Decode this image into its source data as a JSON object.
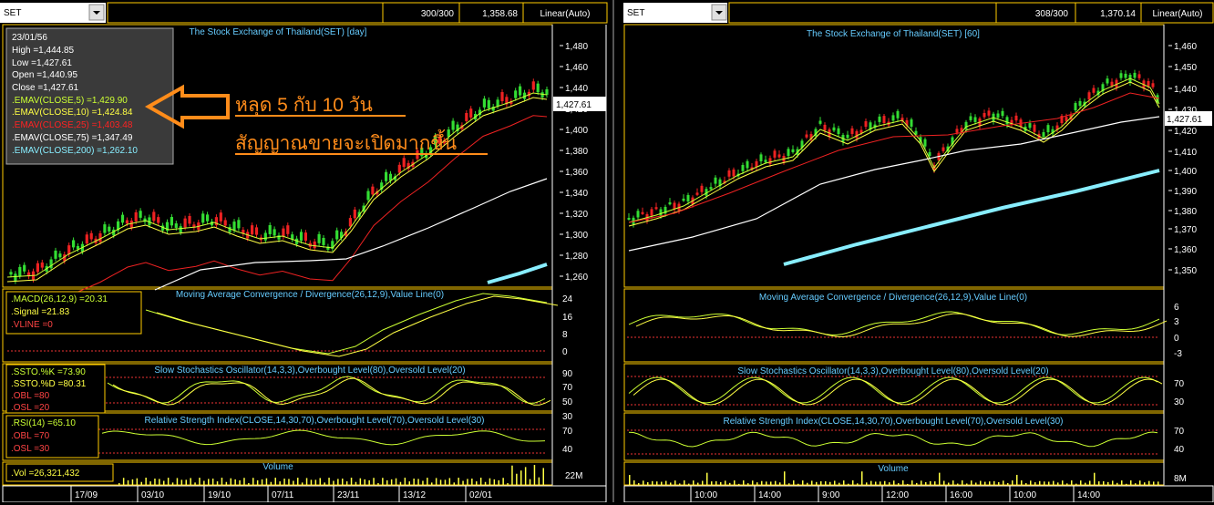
{
  "left": {
    "symbol": "SET",
    "count": "300/300",
    "last_price": "1,358.68",
    "scale_mode": "Linear(Auto)",
    "title": "The Stock Exchange of Thailand(SET) [day]",
    "price_axis": [
      "1,480",
      "1,460",
      "1,440",
      "1,420",
      "1,400",
      "1,380",
      "1,360",
      "1,340",
      "1,320",
      "1,300",
      "1,280",
      "1,260"
    ],
    "current_price_tag": "1,427.61",
    "info": {
      "date": "23/01/56",
      "high": "High  =1,444.85",
      "low": "Low   =1,427.61",
      "open": "Open  =1,440.95",
      "close": "Close  =1,427.61",
      "ema5": ".EMAV(CLOSE,5)    =1,429.90",
      "ema10": ".EMAV(CLOSE,10)    =1,424.84",
      "ema25": ".EMAV(CLOSE,25)    =1,403.48",
      "ema75": ".EMAV(CLOSE,75)    =1,347.49",
      "ema200": ".EMAV(CLOSE,200)    =1,262.10"
    },
    "annotation_line1": "หลุด 5 กับ 10  วัน",
    "annotation_line2": "สัญญาณขายจะเปิดมากขึ้น",
    "macd": {
      "title": "Moving Average Convergence / Divergence(26,12,9),Value Line(0)",
      "l1": ".MACD(26,12,9)   =20.31",
      "l2": ".Signal   =21.83",
      "l3": ".VLINE   =0",
      "axis": [
        "24",
        "16",
        "8",
        "0"
      ]
    },
    "stoch": {
      "title": "Slow Stochastics Oscillator(14,3,3),Overbought Level(80),Oversold Level(20)",
      "l1": ".SSTO.%K   =73.90",
      "l2": ".SSTO.%D   =80.31",
      "l3": ".OBL   =80",
      "l4": ".OSL   =20",
      "axis": [
        "90",
        "70",
        "50",
        "30"
      ]
    },
    "rsi": {
      "title": "Relative Strength Index(CLOSE,14,30,70),Overbought Level(70),Oversold Level(30)",
      "l1": ".RSI(14)   =65.10",
      "l2": ".OBL   =70",
      "l3": ".OSL   =30",
      "axis": [
        "70",
        "40"
      ]
    },
    "volume": {
      "title": "Volume",
      "l1": ".Vol   =26,321,432",
      "axis": [
        "22M"
      ]
    },
    "dates": [
      "17/09",
      "03/10",
      "19/10",
      "07/11",
      "23/11",
      "13/12",
      "02/01"
    ]
  },
  "right": {
    "symbol": "SET",
    "count": "308/300",
    "last_price": "1,370.14",
    "scale_mode": "Linear(Auto)",
    "title": "The Stock Exchange of Thailand(SET) [60]",
    "price_axis": [
      "1,460",
      "1,450",
      "1,440",
      "1,430",
      "1,420",
      "1,410",
      "1,400",
      "1,390",
      "1,380",
      "1,370",
      "1,360",
      "1,350"
    ],
    "current_price_tag": "1,427.61",
    "macd": {
      "title": "Moving Average Convergence / Divergence(26,12,9),Value Line(0)",
      "axis": [
        "6",
        "3",
        "0",
        "-3"
      ]
    },
    "stoch": {
      "title": "Slow Stochastics Oscillator(14,3,3),Overbought Level(80),Oversold Level(20)",
      "axis": [
        "70",
        "30"
      ]
    },
    "rsi": {
      "title": "Relative Strength Index(CLOSE,14,30,70),Overbought Level(70),Oversold Level(30)",
      "axis": [
        "70",
        "40"
      ]
    },
    "volume": {
      "title": "Volume",
      "axis": [
        "8M"
      ]
    },
    "times": [
      "10:00",
      "14:00",
      "9:00",
      "12:00",
      "16:00",
      "10:00",
      "14:00"
    ]
  },
  "chart_data": [
    {
      "type": "candlestick",
      "title": "The Stock Exchange of Thailand(SET) [day]",
      "ylim": [
        1240,
        1490
      ],
      "x": [
        "17/09",
        "03/10",
        "19/10",
        "07/11",
        "23/11",
        "13/12",
        "02/01"
      ],
      "close_approx": [
        1250,
        1300,
        1295,
        1275,
        1290,
        1370,
        1420
      ],
      "last": {
        "date": "23/01/56",
        "high": 1444.85,
        "low": 1427.61,
        "open": 1440.95,
        "close": 1427.61
      },
      "series": [
        {
          "name": ".EMAV(CLOSE,5)",
          "last": 1429.9
        },
        {
          "name": ".EMAV(CLOSE,10)",
          "last": 1424.84
        },
        {
          "name": ".EMAV(CLOSE,25)",
          "last": 1403.48
        },
        {
          "name": ".EMAV(CLOSE,75)",
          "last": 1347.49
        },
        {
          "name": ".EMAV(CLOSE,200)",
          "last": 1262.1
        }
      ]
    },
    {
      "type": "line",
      "title": "Moving Average Convergence / Divergence(26,12,9),Value Line(0)",
      "series": [
        {
          "name": ".MACD(26,12,9)",
          "last": 20.31
        },
        {
          "name": ".Signal",
          "last": 21.83
        },
        {
          "name": ".VLINE",
          "last": 0
        }
      ]
    },
    {
      "type": "line",
      "title": "Slow Stochastics Oscillator(14,3,3),Overbought Level(80),Oversold Level(20)",
      "series": [
        {
          "name": ".SSTO.%K",
          "last": 73.9
        },
        {
          "name": ".SSTO.%D",
          "last": 80.31
        },
        {
          "name": ".OBL",
          "last": 80
        },
        {
          "name": ".OSL",
          "last": 20
        }
      ]
    },
    {
      "type": "line",
      "title": "Relative Strength Index(CLOSE,14,30,70),Overbought Level(70),Oversold Level(30)",
      "series": [
        {
          "name": ".RSI(14)",
          "last": 65.1
        },
        {
          "name": ".OBL",
          "last": 70
        },
        {
          "name": ".OSL",
          "last": 30
        }
      ]
    },
    {
      "type": "bar",
      "title": "Volume",
      "series": [
        {
          "name": ".Vol",
          "last": 26321432
        }
      ]
    },
    {
      "type": "candlestick",
      "title": "The Stock Exchange of Thailand(SET) [60]",
      "ylim": [
        1345,
        1465
      ],
      "x": [
        "10:00",
        "14:00",
        "9:00",
        "12:00",
        "16:00",
        "10:00",
        "14:00"
      ],
      "last_close": 1427.61
    }
  ]
}
